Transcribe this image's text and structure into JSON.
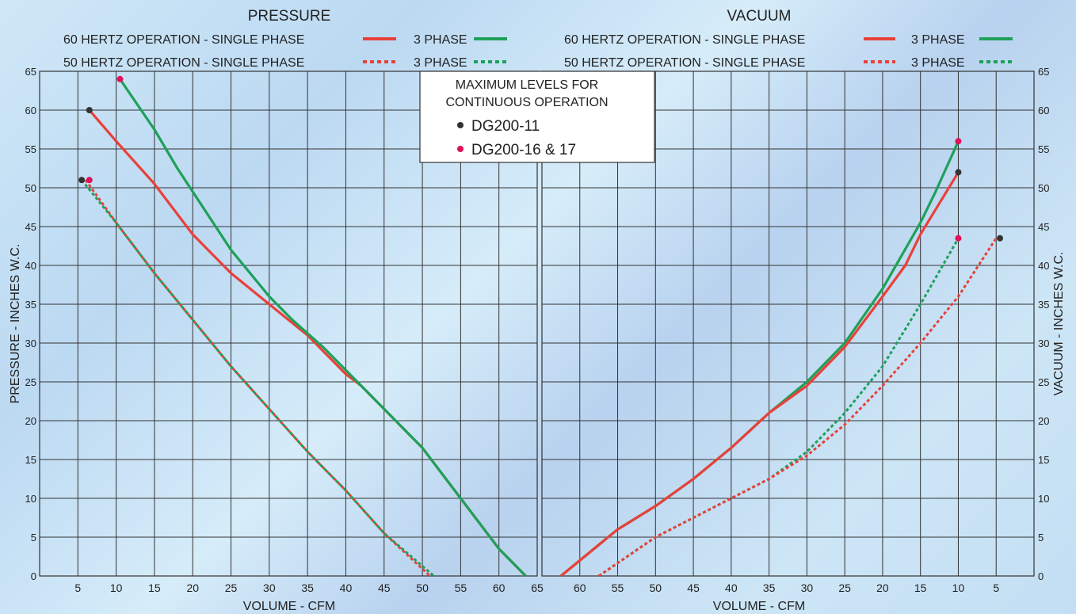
{
  "chart_data": [
    {
      "type": "line",
      "title": "PRESSURE",
      "xlabel": "VOLUME - CFM",
      "ylabel": "PRESSURE -  INCHES W.C.",
      "xlim": [
        0,
        65
      ],
      "ylim": [
        0,
        65
      ],
      "x_ticks": [
        "5",
        "10",
        "15",
        "20",
        "25",
        "30",
        "35",
        "40",
        "45",
        "50",
        "55",
        "60",
        "65"
      ],
      "y_ticks": [
        "0",
        "5",
        "10",
        "15",
        "20",
        "25",
        "30",
        "35",
        "40",
        "45",
        "50",
        "55",
        "60",
        "65"
      ],
      "grid": true,
      "legend_rows": [
        {
          "label": "60 HERTZ OPERATION - SINGLE PHASE",
          "label2": "3 PHASE"
        },
        {
          "label": "50 HERTZ OPERATION - SINGLE PHASE",
          "label2": "3 PHASE"
        }
      ],
      "series": [
        {
          "color": "#e8413a",
          "dash": false,
          "points": [
            [
              6.5,
              60
            ],
            [
              10,
              56
            ],
            [
              15,
              50.5
            ],
            [
              20,
              44
            ],
            [
              25,
              39
            ],
            [
              30,
              35
            ],
            [
              35,
              31
            ],
            [
              40,
              26
            ],
            [
              42,
              24.5
            ],
            [
              45,
              21.5
            ],
            [
              50,
              16.5
            ],
            [
              55,
              10
            ],
            [
              60,
              3.5
            ],
            [
              63.5,
              0
            ]
          ]
        },
        {
          "color": "#1fa05a",
          "dash": false,
          "points": [
            [
              10.5,
              64
            ],
            [
              15,
              57.5
            ],
            [
              18,
              52.5
            ],
            [
              20,
              49.5
            ],
            [
              25,
              42
            ],
            [
              30,
              36
            ],
            [
              33,
              33
            ],
            [
              37,
              29.5
            ],
            [
              40,
              26.5
            ],
            [
              42,
              24.5
            ],
            [
              45,
              21.5
            ],
            [
              50,
              16.5
            ],
            [
              55,
              10
            ],
            [
              60,
              3.5
            ],
            [
              63.5,
              0
            ]
          ]
        },
        {
          "color": "#e8413a",
          "dash": true,
          "points": [
            [
              6,
              51
            ],
            [
              10,
              45.5
            ],
            [
              15,
              39
            ],
            [
              20,
              33
            ],
            [
              25,
              27
            ],
            [
              30,
              21.5
            ],
            [
              35,
              16
            ],
            [
              40,
              11
            ],
            [
              45,
              5.5
            ],
            [
              51,
              0
            ]
          ]
        },
        {
          "color": "#1fa05a",
          "dash": true,
          "points": [
            [
              5.5,
              51
            ],
            [
              10,
              45.5
            ],
            [
              15,
              39
            ],
            [
              20,
              33
            ],
            [
              25,
              27
            ],
            [
              30,
              21.5
            ],
            [
              35,
              16
            ],
            [
              40,
              11
            ],
            [
              45,
              5.5
            ],
            [
              51.5,
              0
            ]
          ]
        }
      ],
      "markers": [
        {
          "x": 6.5,
          "y": 60,
          "color": "#333333"
        },
        {
          "x": 10.5,
          "y": 64,
          "color": "#e0105a"
        },
        {
          "x": 5.5,
          "y": 51,
          "color": "#333333"
        },
        {
          "x": 6.5,
          "y": 51,
          "color": "#e0105a"
        }
      ]
    },
    {
      "type": "line",
      "title": "VACUUM",
      "xlabel": "VOLUME - CFM",
      "ylabel": "VACUUM -  INCHES W.C.",
      "xlim": [
        65,
        0
      ],
      "ylim": [
        0,
        65
      ],
      "x_ticks": [
        "60",
        "55",
        "50",
        "45",
        "40",
        "35",
        "30",
        "25",
        "20",
        "15",
        "10",
        "5"
      ],
      "y_ticks": [
        "0",
        "5",
        "10",
        "15",
        "20",
        "25",
        "30",
        "35",
        "40",
        "45",
        "50",
        "55",
        "60",
        "65"
      ],
      "grid": true,
      "legend_rows": [
        {
          "label": "60 HERTZ OPERATION - SINGLE PHASE",
          "label2": "3 PHASE"
        },
        {
          "label": "50 HERTZ OPERATION - SINGLE PHASE",
          "label2": "3 PHASE"
        }
      ],
      "series": [
        {
          "color": "#1fa05a",
          "dash": false,
          "points": [
            [
              62.5,
              0
            ],
            [
              55,
              6
            ],
            [
              50,
              9
            ],
            [
              45,
              12.5
            ],
            [
              40,
              16.5
            ],
            [
              35,
              21
            ],
            [
              30,
              25
            ],
            [
              25,
              30
            ],
            [
              20,
              37
            ],
            [
              15,
              45.5
            ],
            [
              13,
              49.5
            ],
            [
              10,
              56
            ]
          ]
        },
        {
          "color": "#e8413a",
          "dash": false,
          "points": [
            [
              62.5,
              0
            ],
            [
              55,
              6
            ],
            [
              50,
              9
            ],
            [
              45,
              12.5
            ],
            [
              40,
              16.5
            ],
            [
              35,
              21
            ],
            [
              30,
              24.5
            ],
            [
              25,
              29.5
            ],
            [
              20,
              36
            ],
            [
              17,
              40
            ],
            [
              15,
              44
            ],
            [
              10,
              52
            ]
          ]
        },
        {
          "color": "#1fa05a",
          "dash": true,
          "points": [
            [
              57.5,
              0
            ],
            [
              50,
              5
            ],
            [
              45,
              7.5
            ],
            [
              40,
              10
            ],
            [
              35,
              12.5
            ],
            [
              30,
              16
            ],
            [
              25,
              21
            ],
            [
              20,
              27
            ],
            [
              15,
              35
            ],
            [
              10,
              43.5
            ]
          ]
        },
        {
          "color": "#e8413a",
          "dash": true,
          "points": [
            [
              57.5,
              0
            ],
            [
              50,
              5
            ],
            [
              45,
              7.5
            ],
            [
              40,
              10
            ],
            [
              35,
              12.5
            ],
            [
              30,
              15.5
            ],
            [
              25,
              19.5
            ],
            [
              20,
              24.5
            ],
            [
              15,
              30
            ],
            [
              10,
              36
            ],
            [
              5,
              43.5
            ]
          ]
        }
      ],
      "markers": [
        {
          "x": 10,
          "y": 56,
          "color": "#e0105a"
        },
        {
          "x": 10,
          "y": 52,
          "color": "#333333"
        },
        {
          "x": 10,
          "y": 43.5,
          "color": "#e0105a"
        },
        {
          "x": 4.5,
          "y": 43.5,
          "color": "#333333"
        }
      ]
    }
  ],
  "callout": {
    "title_line1": "MAXIMUM LEVELS FOR",
    "title_line2": "CONTINUOUS OPERATION",
    "items": [
      {
        "label": "DG200-11",
        "color": "#333333"
      },
      {
        "label": "DG200-16 & 17",
        "color": "#e0105a"
      }
    ]
  }
}
